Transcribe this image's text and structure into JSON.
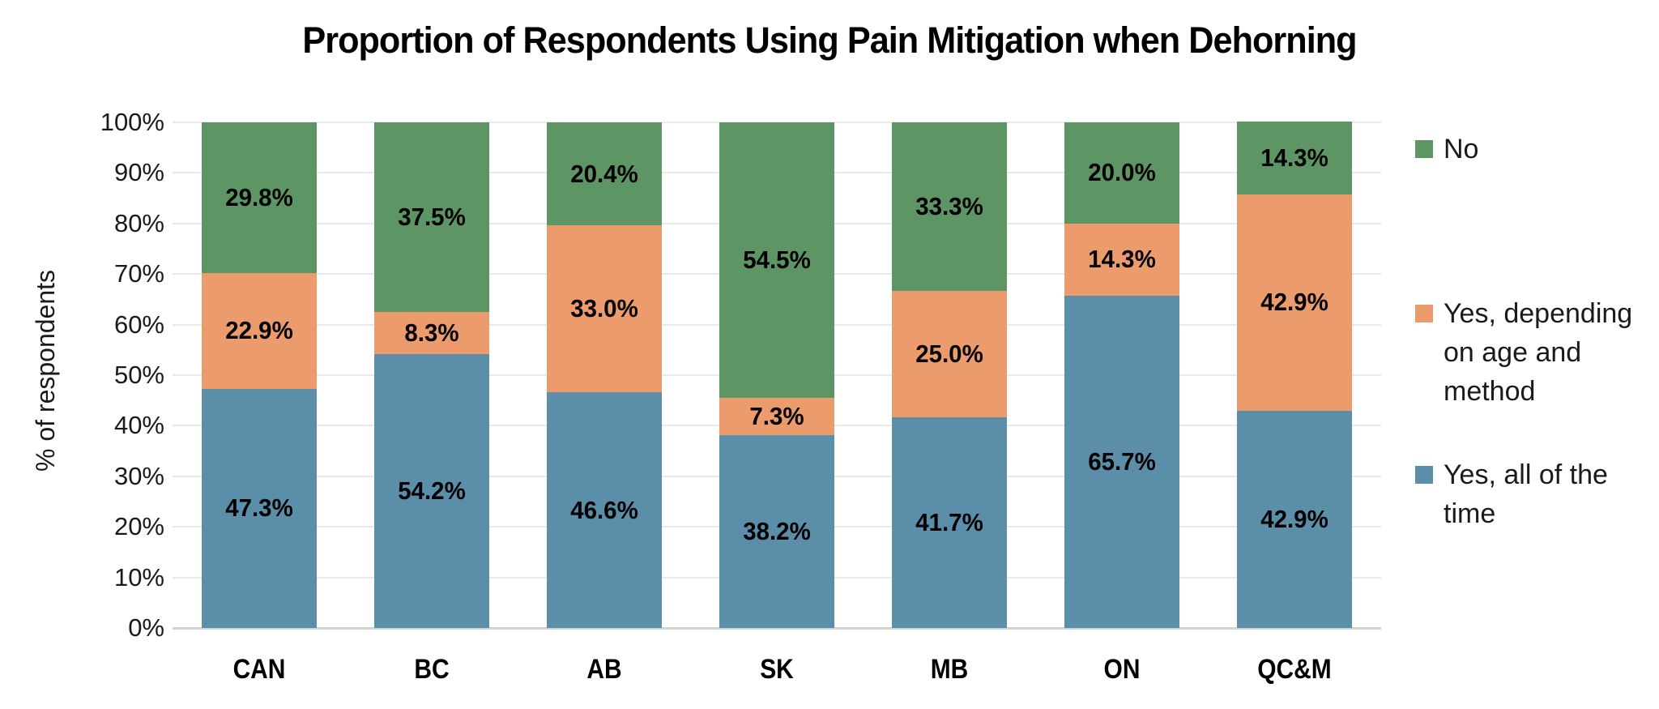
{
  "chart_data": {
    "type": "bar",
    "stacked": true,
    "title": "Proportion of Respondents Using Pain Mitigation when Dehorning",
    "xlabel": "",
    "ylabel": "% of respondents",
    "categories": [
      "CAN",
      "BC",
      "AB",
      "SK",
      "MB",
      "ON",
      "QC&M"
    ],
    "series": [
      {
        "name": "Yes, all of the time",
        "color": "#5B8FA9",
        "values": [
          47.3,
          54.2,
          46.6,
          38.2,
          41.7,
          65.7,
          42.9
        ],
        "labels": [
          "47.3%",
          "54.2%",
          "46.6%",
          "38.2%",
          "41.7%",
          "65.7%",
          "42.9%"
        ]
      },
      {
        "name": "Yes, depending on age and method",
        "color": "#EC9B6D",
        "values": [
          22.9,
          8.3,
          33.0,
          7.3,
          25.0,
          14.3,
          42.9
        ],
        "labels": [
          "22.9%",
          "8.3%",
          "33.0%",
          "7.3%",
          "25.0%",
          "14.3%",
          "42.9%"
        ]
      },
      {
        "name": "No",
        "color": "#5D9564",
        "values": [
          29.8,
          37.5,
          20.4,
          54.5,
          33.3,
          20.0,
          14.3
        ],
        "labels": [
          "29.8%",
          "37.5%",
          "20.4%",
          "54.5%",
          "33.3%",
          "20.0%",
          "14.3%"
        ]
      }
    ],
    "ylim": [
      0,
      100
    ],
    "yticks": [
      "0%",
      "10%",
      "20%",
      "30%",
      "40%",
      "50%",
      "60%",
      "70%",
      "80%",
      "90%",
      "100%"
    ],
    "grid": true,
    "legend_position": "right",
    "legend": [
      {
        "series": "No",
        "lines": [
          "No"
        ]
      },
      {
        "series": "Yes, depending on age and method",
        "lines": [
          "Yes, depending",
          "on age and",
          "method"
        ]
      },
      {
        "series": "Yes, all of the time",
        "lines": [
          "Yes, all of the",
          "time"
        ]
      }
    ]
  }
}
